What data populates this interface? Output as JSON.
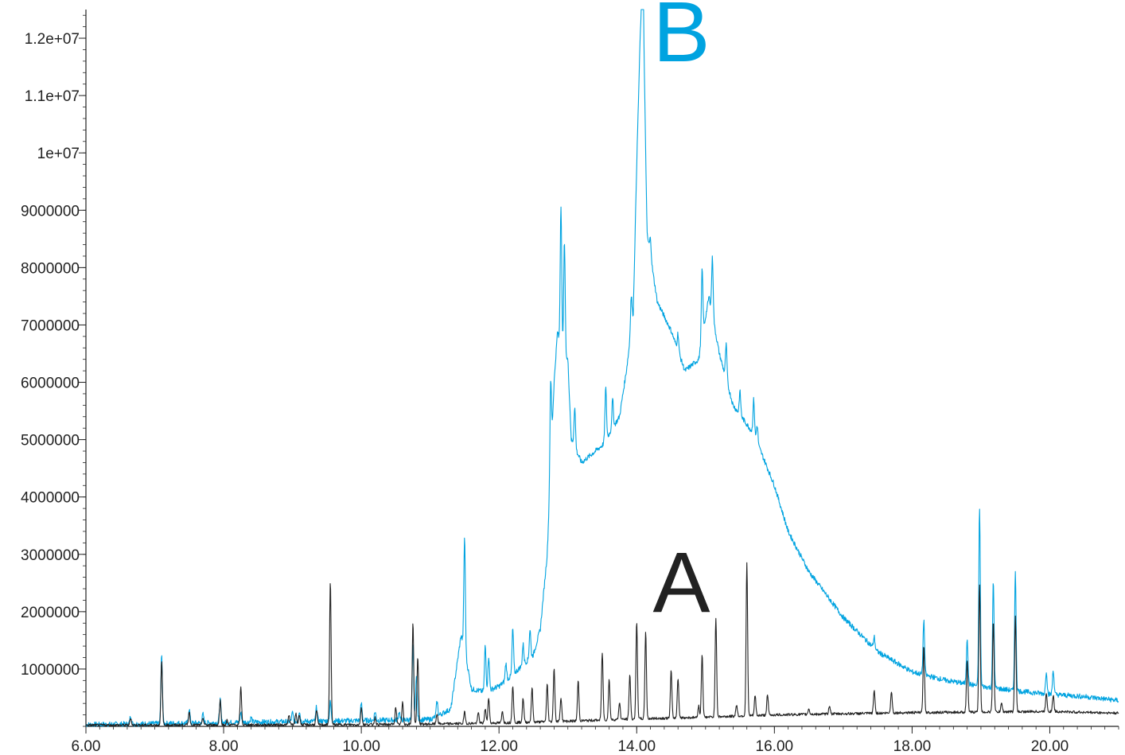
{
  "chart_data": {
    "type": "line",
    "title": "",
    "xlabel": "",
    "ylabel": "",
    "xlim": [
      6.0,
      21.0
    ],
    "ylim": [
      0,
      12500000
    ],
    "grid": false,
    "x_ticks": [
      6.0,
      8.0,
      10.0,
      12.0,
      14.0,
      16.0,
      18.0,
      20.0
    ],
    "x_tick_labels": [
      "6.00",
      "8.00",
      "10.00",
      "12.00",
      "14.00",
      "16.00",
      "18.00",
      "20.00"
    ],
    "y_ticks": [
      1000000,
      2000000,
      3000000,
      4000000,
      5000000,
      6000000,
      7000000,
      8000000,
      9000000,
      10000000,
      11000000,
      12000000
    ],
    "y_tick_labels": [
      "1000000",
      "2000000",
      "3000000",
      "4000000",
      "5000000",
      "6000000",
      "7000000",
      "8000000",
      "9000000",
      "1e+07",
      "1.1e+07",
      "1.2e+07"
    ],
    "annotations": [
      {
        "text": "B",
        "x": 14.65,
        "y": 11600000,
        "color": "#00a3e0"
      },
      {
        "text": "A",
        "x": 14.65,
        "y": 2000000,
        "color": "#222222"
      }
    ],
    "series": [
      {
        "color": "#00a3e0",
        "baseline": [
          [
            6.0,
            30000
          ],
          [
            11.0,
            120000
          ],
          [
            11.3,
            300000
          ],
          [
            11.45,
            1600000
          ],
          [
            11.55,
            1000000
          ],
          [
            11.6,
            650000
          ],
          [
            11.8,
            600000
          ],
          [
            12.0,
            700000
          ],
          [
            12.2,
            900000
          ],
          [
            12.5,
            1250000
          ],
          [
            12.6,
            1700000
          ],
          [
            12.7,
            3000000
          ],
          [
            12.8,
            6000000
          ],
          [
            12.85,
            6900000
          ],
          [
            12.9,
            6500000
          ],
          [
            13.0,
            6400000
          ],
          [
            13.05,
            5000000
          ],
          [
            13.2,
            4600000
          ],
          [
            13.5,
            4900000
          ],
          [
            13.75,
            5400000
          ],
          [
            13.85,
            6200000
          ],
          [
            13.95,
            7200000
          ],
          [
            14.0,
            9800000
          ],
          [
            14.05,
            12000000
          ],
          [
            14.1,
            12200000
          ],
          [
            14.15,
            8600000
          ],
          [
            14.3,
            7400000
          ],
          [
            14.5,
            6900000
          ],
          [
            14.7,
            6200000
          ],
          [
            14.9,
            6400000
          ],
          [
            15.05,
            7500000
          ],
          [
            15.2,
            6500000
          ],
          [
            15.4,
            5600000
          ],
          [
            15.7,
            5100000
          ],
          [
            16.0,
            4200000
          ],
          [
            16.2,
            3400000
          ],
          [
            16.5,
            2700000
          ],
          [
            17.0,
            1900000
          ],
          [
            17.5,
            1300000
          ],
          [
            18.0,
            950000
          ],
          [
            18.5,
            800000
          ],
          [
            19.0,
            700000
          ],
          [
            19.5,
            620000
          ],
          [
            20.0,
            560000
          ],
          [
            20.5,
            520000
          ],
          [
            21.0,
            450000
          ]
        ],
        "peaks": [
          [
            6.65,
            150000
          ],
          [
            7.1,
            1180000
          ],
          [
            7.5,
            250000
          ],
          [
            7.7,
            150000
          ],
          [
            7.95,
            400000
          ],
          [
            8.25,
            170000
          ],
          [
            8.4,
            80000
          ],
          [
            9.0,
            150000
          ],
          [
            9.1,
            180000
          ],
          [
            9.35,
            250000
          ],
          [
            9.55,
            330000
          ],
          [
            10.0,
            300000
          ],
          [
            10.2,
            150000
          ],
          [
            10.55,
            150000
          ],
          [
            10.75,
            1300000
          ],
          [
            10.8,
            800000
          ],
          [
            11.1,
            250000
          ],
          [
            11.5,
            2000000
          ],
          [
            11.8,
            800000
          ],
          [
            11.85,
            600000
          ],
          [
            12.1,
            300000
          ],
          [
            12.2,
            800000
          ],
          [
            12.35,
            350000
          ],
          [
            12.45,
            500000
          ],
          [
            12.75,
            1500000
          ],
          [
            12.9,
            2600000
          ],
          [
            12.95,
            2000000
          ],
          [
            13.1,
            700000
          ],
          [
            13.55,
            900000
          ],
          [
            13.65,
            500000
          ],
          [
            13.92,
            600000
          ],
          [
            14.08,
            1500000
          ],
          [
            14.2,
            300000
          ],
          [
            14.6,
            300000
          ],
          [
            14.95,
            1200000
          ],
          [
            15.1,
            1000000
          ],
          [
            15.3,
            600000
          ],
          [
            15.5,
            400000
          ],
          [
            15.7,
            600000
          ],
          [
            15.75,
            300000
          ],
          [
            17.45,
            200000
          ],
          [
            18.17,
            950000
          ],
          [
            18.8,
            800000
          ],
          [
            18.98,
            3100000
          ],
          [
            19.18,
            1850000
          ],
          [
            19.5,
            2050000
          ],
          [
            19.95,
            400000
          ],
          [
            20.05,
            430000
          ]
        ]
      },
      {
        "color": "#222222",
        "baseline": [
          [
            6.0,
            20000
          ],
          [
            10.0,
            30000
          ],
          [
            11.0,
            40000
          ],
          [
            12.0,
            60000
          ],
          [
            13.0,
            90000
          ],
          [
            14.0,
            130000
          ],
          [
            15.0,
            160000
          ],
          [
            16.0,
            200000
          ],
          [
            17.0,
            220000
          ],
          [
            18.0,
            240000
          ],
          [
            19.0,
            250000
          ],
          [
            20.0,
            260000
          ],
          [
            21.0,
            230000
          ]
        ],
        "peaks": [
          [
            6.65,
            120000
          ],
          [
            7.1,
            1100000
          ],
          [
            7.5,
            230000
          ],
          [
            7.7,
            120000
          ],
          [
            7.95,
            430000
          ],
          [
            8.05,
            80000
          ],
          [
            8.25,
            650000
          ],
          [
            8.95,
            170000
          ],
          [
            9.05,
            200000
          ],
          [
            9.1,
            180000
          ],
          [
            9.35,
            250000
          ],
          [
            9.55,
            2500000
          ],
          [
            10.0,
            300000
          ],
          [
            10.2,
            120000
          ],
          [
            10.5,
            300000
          ],
          [
            10.6,
            380000
          ],
          [
            10.75,
            1780000
          ],
          [
            10.82,
            1180000
          ],
          [
            11.1,
            180000
          ],
          [
            11.5,
            200000
          ],
          [
            11.7,
            180000
          ],
          [
            11.8,
            250000
          ],
          [
            11.85,
            450000
          ],
          [
            12.05,
            200000
          ],
          [
            12.2,
            650000
          ],
          [
            12.35,
            420000
          ],
          [
            12.48,
            600000
          ],
          [
            12.7,
            650000
          ],
          [
            12.8,
            930000
          ],
          [
            12.9,
            420000
          ],
          [
            13.15,
            700000
          ],
          [
            13.5,
            1180000
          ],
          [
            13.6,
            700000
          ],
          [
            13.75,
            300000
          ],
          [
            13.9,
            780000
          ],
          [
            14.0,
            1700000
          ],
          [
            14.13,
            1520000
          ],
          [
            14.5,
            820000
          ],
          [
            14.6,
            700000
          ],
          [
            14.9,
            200000
          ],
          [
            14.95,
            1100000
          ],
          [
            15.15,
            1730000
          ],
          [
            15.45,
            200000
          ],
          [
            15.6,
            2650000
          ],
          [
            15.72,
            350000
          ],
          [
            15.9,
            350000
          ],
          [
            16.5,
            100000
          ],
          [
            16.8,
            150000
          ],
          [
            17.45,
            400000
          ],
          [
            17.7,
            380000
          ],
          [
            18.17,
            1150000
          ],
          [
            18.8,
            900000
          ],
          [
            18.98,
            2200000
          ],
          [
            19.18,
            1600000
          ],
          [
            19.3,
            150000
          ],
          [
            19.5,
            1650000
          ],
          [
            19.95,
            320000
          ],
          [
            20.05,
            280000
          ]
        ]
      }
    ]
  }
}
